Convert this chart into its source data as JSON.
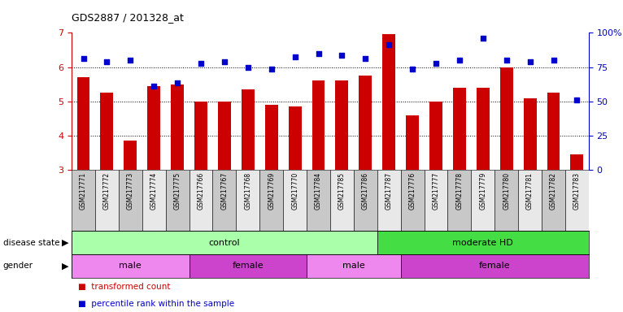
{
  "title": "GDS2887 / 201328_at",
  "samples": [
    "GSM217771",
    "GSM217772",
    "GSM217773",
    "GSM217774",
    "GSM217775",
    "GSM217766",
    "GSM217767",
    "GSM217768",
    "GSM217769",
    "GSM217770",
    "GSM217784",
    "GSM217785",
    "GSM217786",
    "GSM217787",
    "GSM217776",
    "GSM217777",
    "GSM217778",
    "GSM217779",
    "GSM217780",
    "GSM217781",
    "GSM217782",
    "GSM217783"
  ],
  "bar_values": [
    5.7,
    5.25,
    3.85,
    5.45,
    5.5,
    5.0,
    5.0,
    5.35,
    4.9,
    4.85,
    5.6,
    5.6,
    5.75,
    6.95,
    4.6,
    5.0,
    5.4,
    5.4,
    6.0,
    5.1,
    5.25,
    3.45
  ],
  "dot_values": [
    6.25,
    6.15,
    6.2,
    5.45,
    5.55,
    6.1,
    6.15,
    6.0,
    5.95,
    6.3,
    6.4,
    6.35,
    6.25,
    6.65,
    5.95,
    6.1,
    6.2,
    6.85,
    6.2,
    6.15,
    6.2,
    5.05
  ],
  "bar_color": "#cc0000",
  "dot_color": "#0000cc",
  "ylim": [
    3.0,
    7.0
  ],
  "yticks": [
    3,
    4,
    5,
    6,
    7
  ],
  "yticks_right_labels": [
    "0",
    "25",
    "50",
    "75",
    "100%"
  ],
  "grid_values": [
    4.0,
    5.0,
    6.0
  ],
  "disease_state_groups": [
    {
      "label": "control",
      "start": 0,
      "end": 13,
      "color": "#aaffaa"
    },
    {
      "label": "moderate HD",
      "start": 13,
      "end": 22,
      "color": "#44dd44"
    }
  ],
  "gender_groups": [
    {
      "label": "male",
      "start": 0,
      "end": 5,
      "color": "#ee88ee"
    },
    {
      "label": "female",
      "start": 5,
      "end": 10,
      "color": "#cc44cc"
    },
    {
      "label": "male",
      "start": 10,
      "end": 14,
      "color": "#ee88ee"
    },
    {
      "label": "female",
      "start": 14,
      "end": 22,
      "color": "#cc44cc"
    }
  ],
  "disease_state_label": "disease state",
  "gender_label": "gender",
  "left_axis_color": "#cc0000",
  "right_axis_color": "#0000cc",
  "background_color": "#ffffff",
  "bar_width": 0.55,
  "tick_box_colors": [
    "#c8c8c8",
    "#e8e8e8"
  ]
}
